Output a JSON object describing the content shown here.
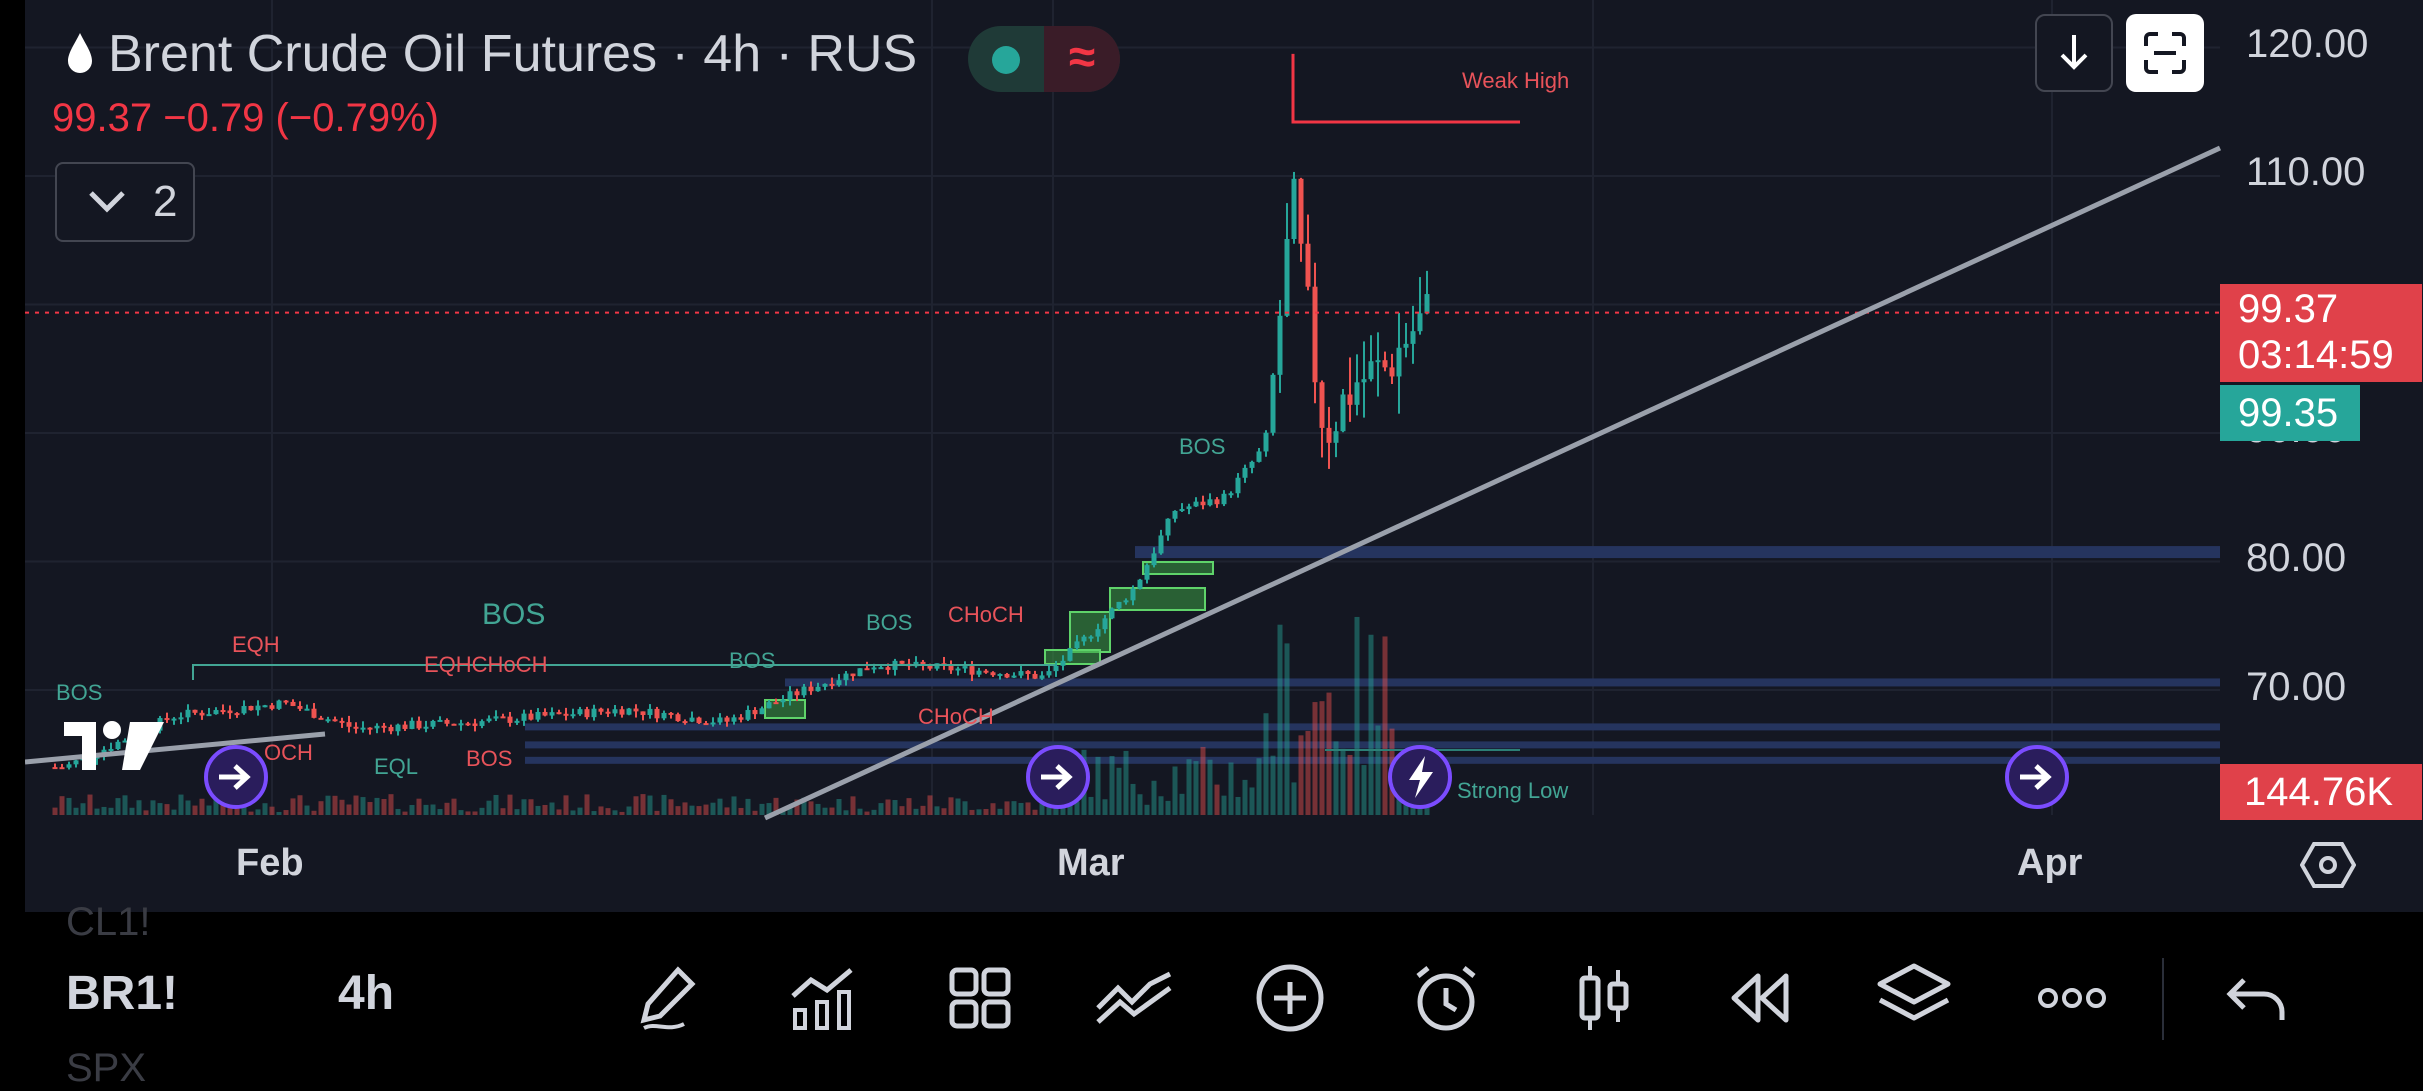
{
  "header": {
    "symbol_title": "Brent Crude Oil Futures · 4h · RUS",
    "quote": "99.37  −0.79 (−0.79%)",
    "indicator_count": "2"
  },
  "price_axis": {
    "labels": [
      "120.00",
      "110.00",
      "90.00",
      "80.00",
      "70.00"
    ],
    "last_price": "99.37",
    "countdown": "03:14:59",
    "bid_price": "99.35",
    "volume_tag": "144.76K"
  },
  "time_axis": {
    "labels": [
      "Feb",
      "Mar",
      "Apr"
    ]
  },
  "annotations": {
    "weak_high": "Weak High",
    "strong_low": "Strong Low",
    "bos": "BOS",
    "eqh": "EQH",
    "eql": "EQL",
    "choch": "CHoCH",
    "eqh_choch": "EQHCHoCH",
    "choch_partial": "OCH"
  },
  "bottom_bar": {
    "symbol": "BR1!",
    "interval": "4h",
    "prev_symbol": "CL1!",
    "next_symbol": "SPX"
  },
  "colors": {
    "background": "#141722",
    "up": "#26a69a",
    "down": "#ef5350",
    "last_price_tag": "#e0414a",
    "bid_tag": "#26a69a",
    "event_marker": "#7b4cff"
  },
  "icons": [
    "water-drop-icon",
    "download-icon",
    "fullscreen-icon",
    "chevron-down-icon",
    "fast-forward-icon",
    "lightning-icon",
    "settings-icon",
    "pencil-icon",
    "indicators-icon",
    "grid-icon",
    "drawings-icon",
    "plus-circle-icon",
    "alarm-icon",
    "candles-icon",
    "rewind-icon",
    "layers-icon",
    "more-icon",
    "undo-icon"
  ]
}
